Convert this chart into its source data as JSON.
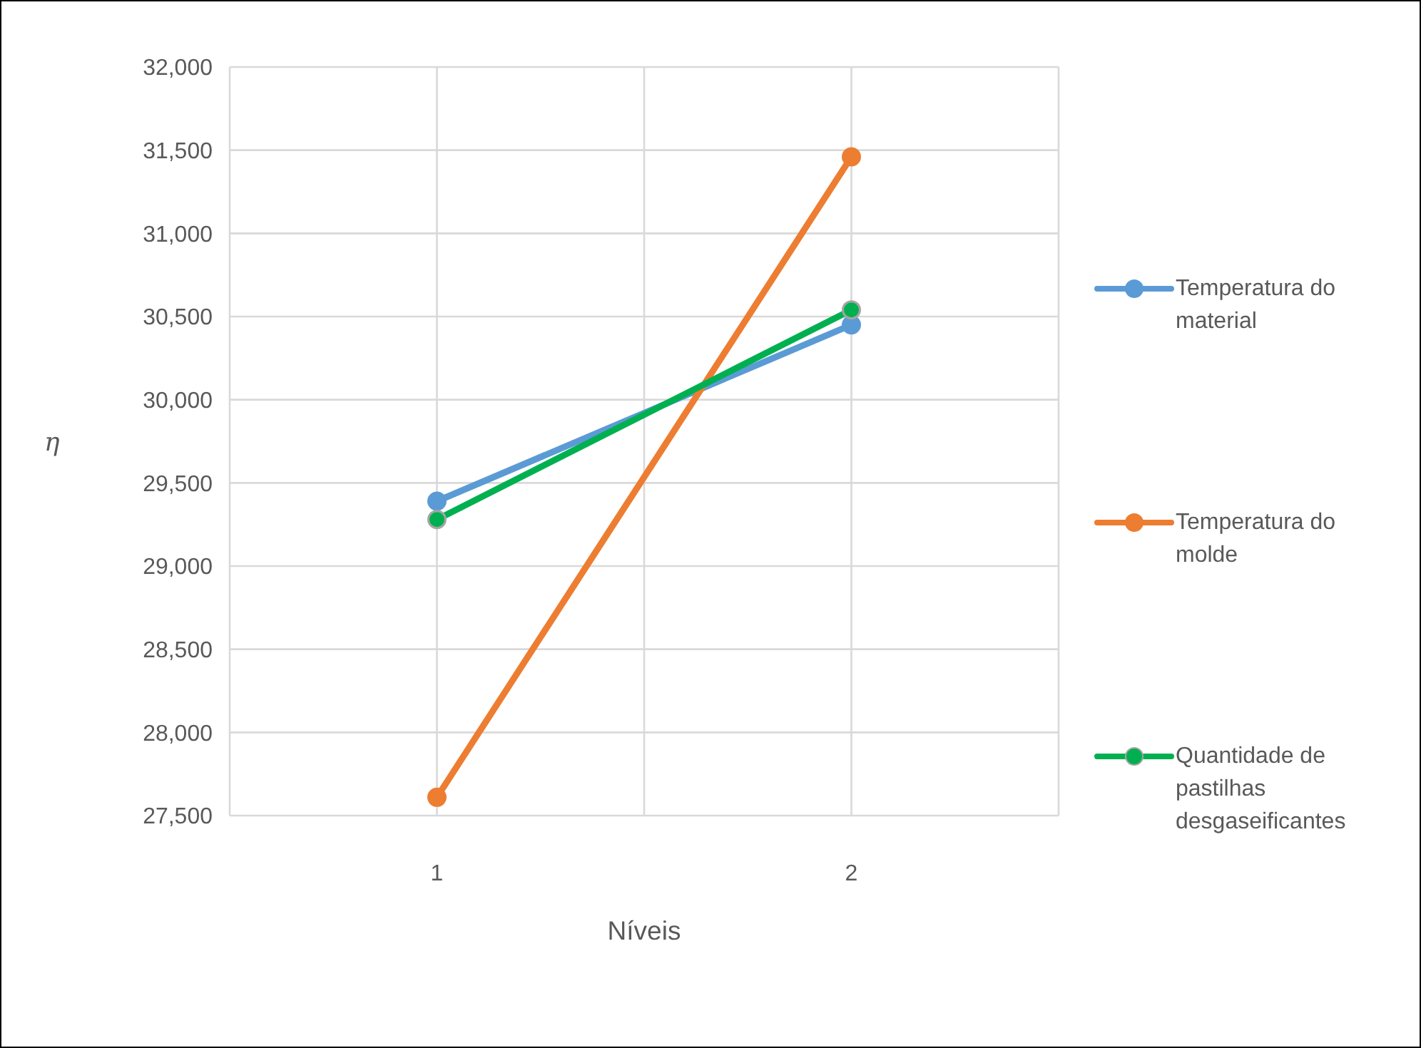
{
  "chart_data": {
    "type": "line",
    "xlabel": "Níveis",
    "ylabel": "η",
    "categories": [
      "1",
      "2"
    ],
    "series": [
      {
        "name": "Temperatura do material",
        "color": "#5b9bd5",
        "values": [
          29390,
          30450
        ]
      },
      {
        "name": "Temperatura do molde",
        "color": "#ed7d31",
        "values": [
          27610,
          31460
        ]
      },
      {
        "name": "Quantidade de pastilhas desgaseificantes",
        "color": "#00b050",
        "values": [
          29280,
          30540
        ]
      }
    ],
    "ylim": [
      27500,
      32000
    ],
    "yticks": [
      {
        "value": 27500,
        "label": "27,500"
      },
      {
        "value": 28000,
        "label": "28,000"
      },
      {
        "value": 28500,
        "label": "28,500"
      },
      {
        "value": 29000,
        "label": "29,000"
      },
      {
        "value": 29500,
        "label": "29,500"
      },
      {
        "value": 30000,
        "label": "30,000"
      },
      {
        "value": 30500,
        "label": "30,500"
      },
      {
        "value": 31000,
        "label": "31,000"
      },
      {
        "value": 31500,
        "label": "31,500"
      },
      {
        "value": 32000,
        "label": "32,000"
      }
    ],
    "grid": true,
    "legend": "right",
    "marker": "circle",
    "line_style": "solid"
  }
}
